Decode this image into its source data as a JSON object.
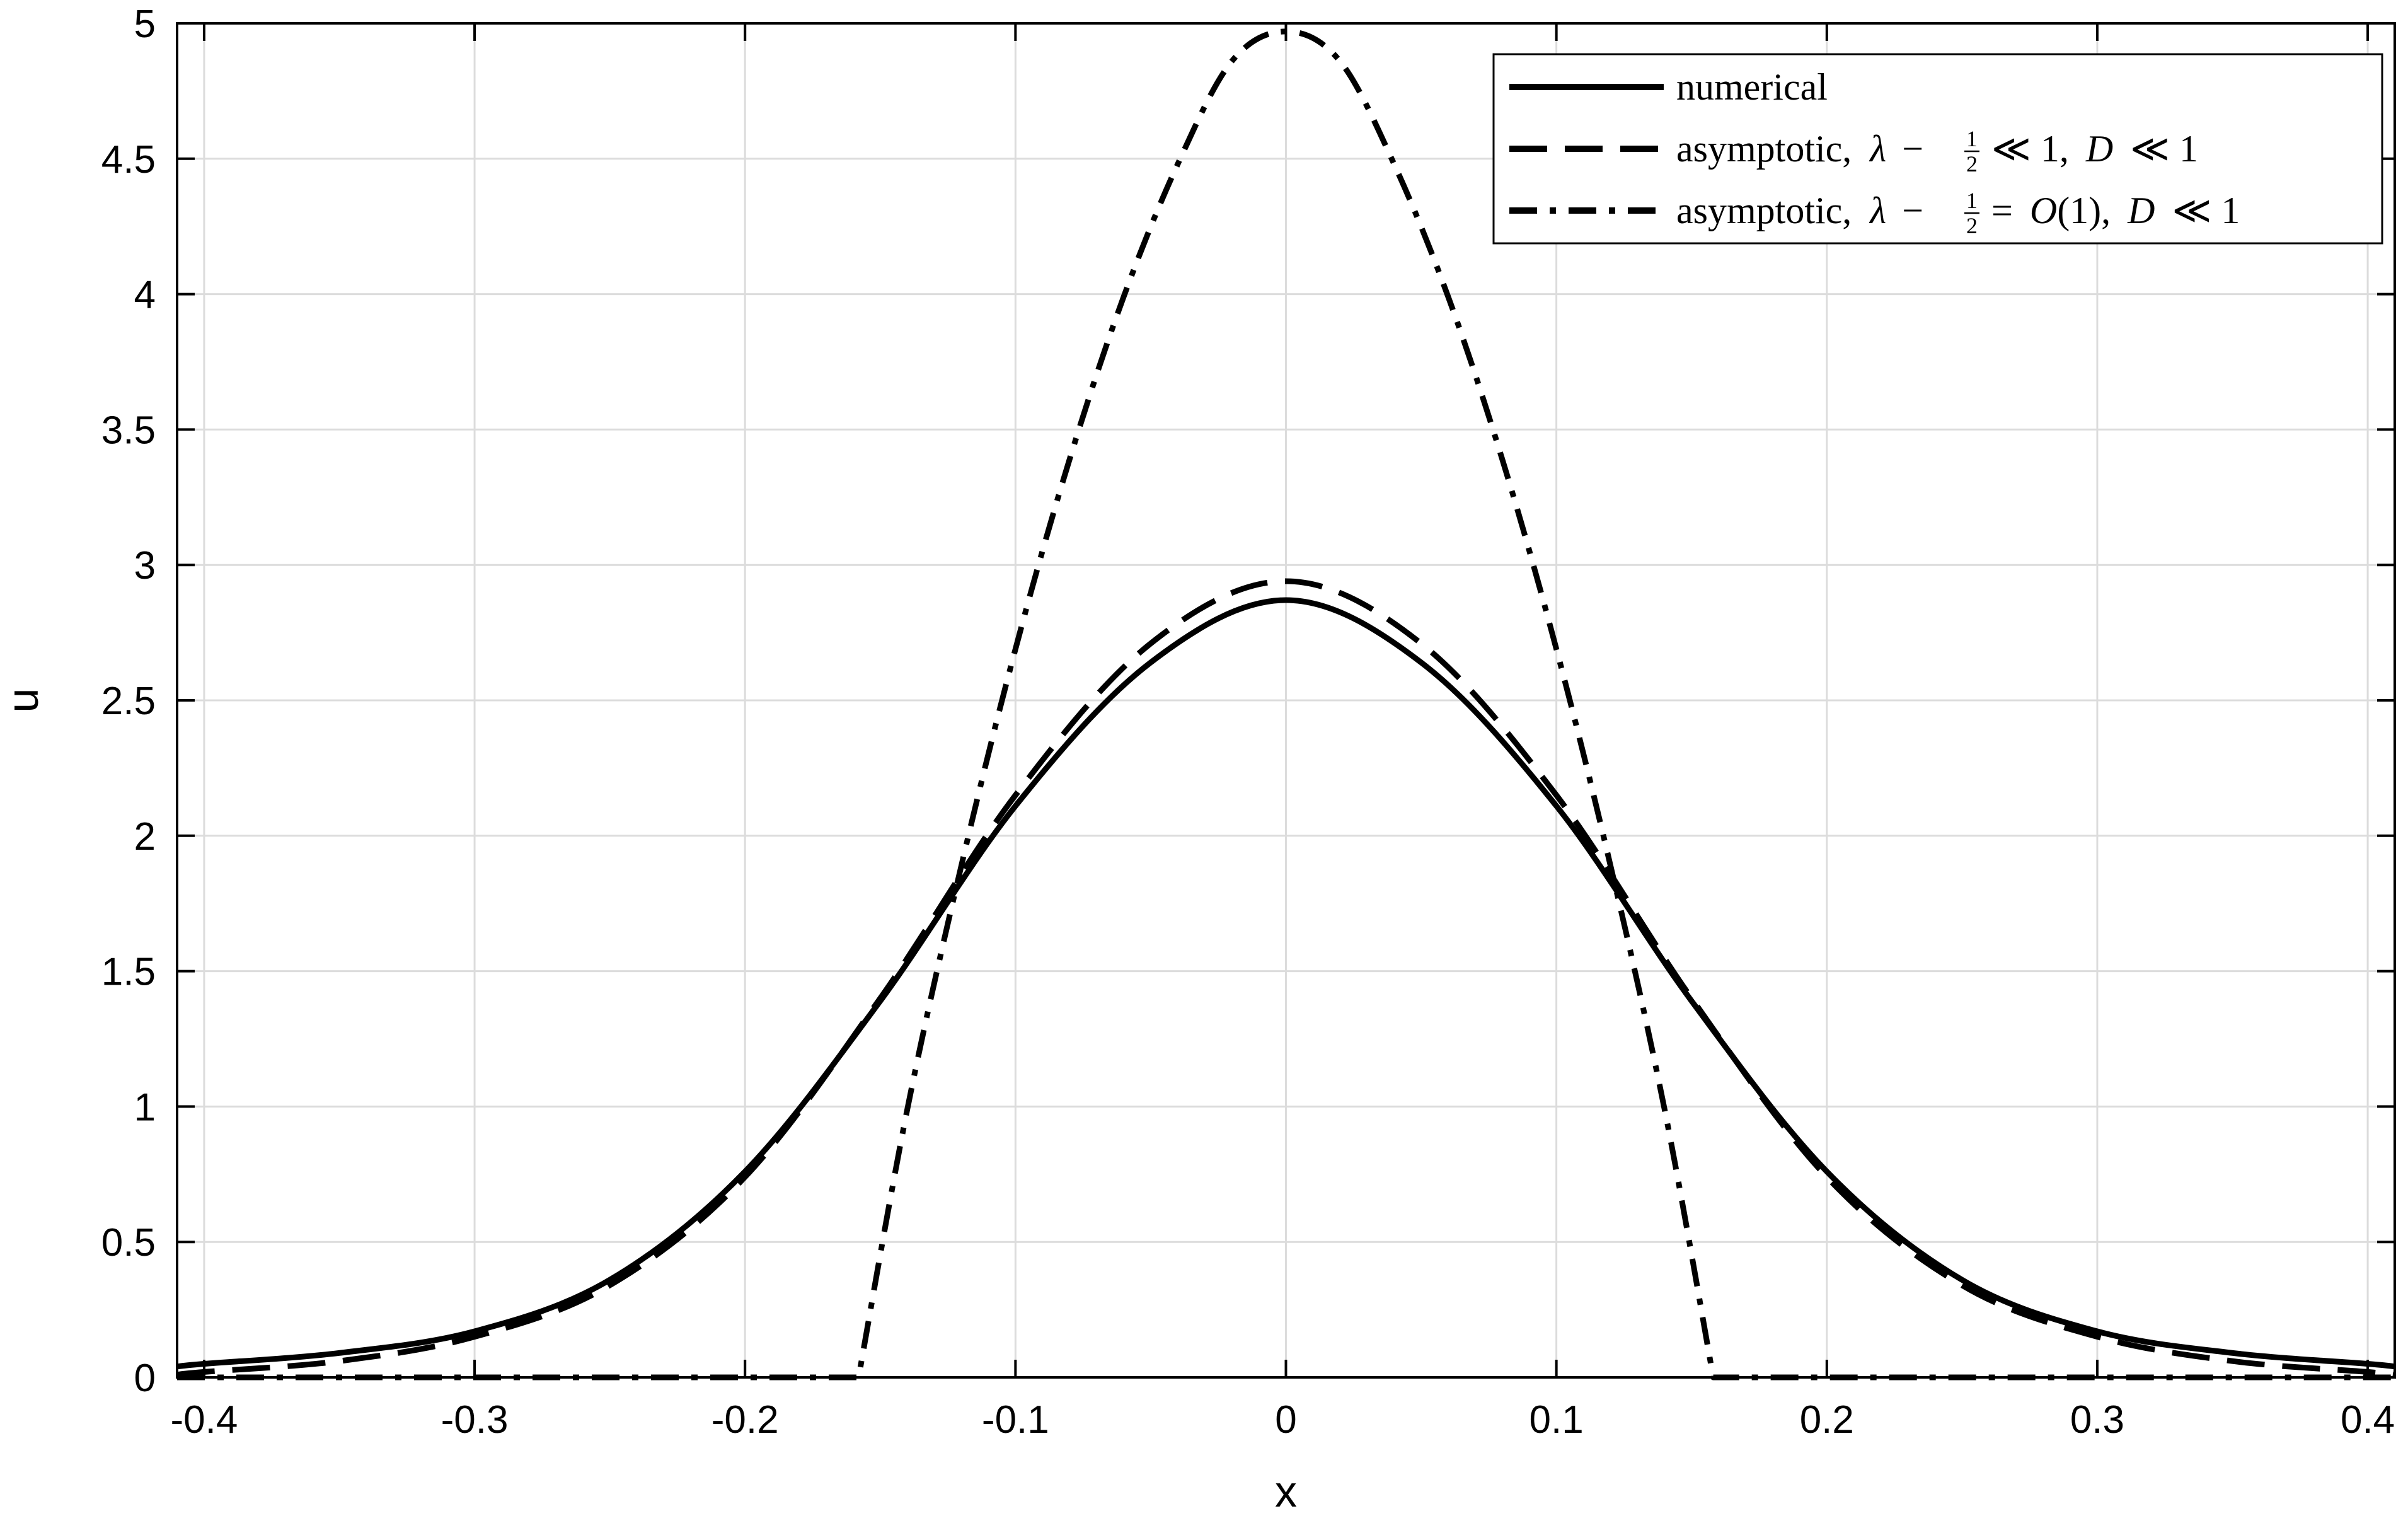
{
  "chart_data": {
    "type": "line",
    "title": "",
    "xlabel": "x",
    "ylabel": "u",
    "xlim": [
      -0.41,
      0.41
    ],
    "ylim": [
      0,
      5
    ],
    "grid": true,
    "legend_position": "top-right",
    "x_ticks": [
      {
        "value": -0.4,
        "label": "-0.4"
      },
      {
        "value": -0.3,
        "label": "-0.3"
      },
      {
        "value": -0.2,
        "label": "-0.2"
      },
      {
        "value": -0.1,
        "label": "-0.1"
      },
      {
        "value": 0,
        "label": "0"
      },
      {
        "value": 0.1,
        "label": "0.1"
      },
      {
        "value": 0.2,
        "label": "0.2"
      },
      {
        "value": 0.3,
        "label": "0.3"
      },
      {
        "value": 0.4,
        "label": "0.4"
      }
    ],
    "y_ticks": [
      {
        "value": 0,
        "label": "0"
      },
      {
        "value": 0.5,
        "label": "0.5"
      },
      {
        "value": 1,
        "label": "1"
      },
      {
        "value": 1.5,
        "label": "1.5"
      },
      {
        "value": 2,
        "label": "2"
      },
      {
        "value": 2.5,
        "label": "2.5"
      },
      {
        "value": 3,
        "label": "3"
      },
      {
        "value": 3.5,
        "label": "3.5"
      },
      {
        "value": 4,
        "label": "4"
      },
      {
        "value": 4.5,
        "label": "4.5"
      },
      {
        "value": 5,
        "label": "5"
      }
    ],
    "series": [
      {
        "name": "numerical",
        "style": "solid",
        "color": "#000000",
        "x": [
          -0.41,
          -0.4,
          -0.35,
          -0.3,
          -0.25,
          -0.2,
          -0.15,
          -0.1,
          -0.05,
          0,
          0.05,
          0.1,
          0.15,
          0.2,
          0.25,
          0.3,
          0.35,
          0.4,
          0.41
        ],
        "y": [
          0.04,
          0.05,
          0.09,
          0.17,
          0.36,
          0.76,
          1.39,
          2.11,
          2.64,
          2.87,
          2.64,
          2.11,
          1.39,
          0.76,
          0.36,
          0.17,
          0.09,
          0.05,
          0.04
        ]
      },
      {
        "name": "asymptotic, λ − 1/2 ≪ 1, D ≪ 1",
        "style": "dashed",
        "color": "#000000",
        "x": [
          -0.41,
          -0.4,
          -0.35,
          -0.3,
          -0.25,
          -0.2,
          -0.15,
          -0.1,
          -0.05,
          0,
          0.05,
          0.1,
          0.15,
          0.2,
          0.25,
          0.3,
          0.35,
          0.4,
          0.41
        ],
        "y": [
          0.01,
          0.02,
          0.06,
          0.15,
          0.34,
          0.74,
          1.4,
          2.15,
          2.71,
          2.94,
          2.71,
          2.15,
          1.4,
          0.74,
          0.34,
          0.15,
          0.06,
          0.02,
          0.01
        ]
      },
      {
        "name": "asymptotic, λ − 1/2 = O(1), D ≪ 1",
        "style": "dashdot",
        "color": "#000000",
        "x": [
          -0.41,
          -0.3,
          -0.2,
          -0.158,
          -0.14,
          -0.12,
          -0.1,
          -0.08,
          -0.06,
          -0.04,
          -0.02,
          0,
          0.02,
          0.04,
          0.06,
          0.08,
          0.1,
          0.12,
          0.14,
          0.158,
          0.2,
          0.3,
          0.41
        ],
        "y": [
          0,
          0,
          0,
          0,
          0.99,
          1.89,
          2.69,
          3.39,
          3.99,
          4.48,
          4.86,
          4.97,
          4.86,
          4.48,
          3.99,
          3.39,
          2.69,
          1.89,
          0.99,
          0,
          0,
          0,
          0
        ]
      }
    ]
  },
  "legend": {
    "items": [
      {
        "style": "solid",
        "label": "numerical"
      },
      {
        "style": "dashed",
        "prefix": "asymptotic,",
        "lambda": "λ",
        "minus": "−",
        "frac_num": "1",
        "frac_den": "2",
        "relation": "≪ 1,",
        "D": "D",
        "tail": "≪ 1"
      },
      {
        "style": "dashdot",
        "prefix": "asymptotic,",
        "lambda": "λ",
        "minus": "−",
        "frac_num": "1",
        "frac_den": "2",
        "relation": "=",
        "order": "O",
        "order_arg": "(1),",
        "D": "D",
        "tail": "≪ 1"
      }
    ]
  }
}
